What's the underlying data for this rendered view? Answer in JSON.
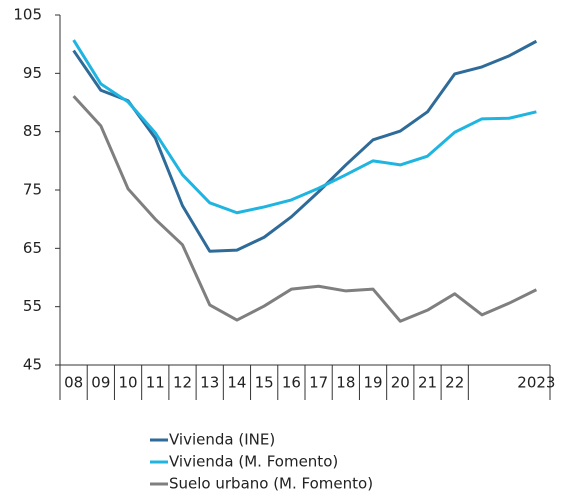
{
  "chart_data": {
    "type": "line",
    "categories": [
      "08",
      "09",
      "10",
      "11",
      "12",
      "13",
      "14",
      "15",
      "16",
      "17",
      "18",
      "19",
      "20",
      "21",
      "22",
      null,
      null,
      "2023"
    ],
    "series": [
      {
        "name": "Vivienda (INE)",
        "color": "#2e6b99",
        "values": [
          98.9,
          92.1,
          90.3,
          83.9,
          72.3,
          64.5,
          64.7,
          66.9,
          70.4,
          74.7,
          79.3,
          83.6,
          85.1,
          88.4,
          94.9,
          96.1,
          98.0,
          100.5
        ]
      },
      {
        "name": "Vivienda (M. Fomento)",
        "color": "#1fb5e0",
        "values": [
          100.7,
          93.2,
          90.1,
          84.8,
          77.6,
          72.8,
          71.1,
          72.1,
          73.3,
          75.3,
          77.6,
          80.0,
          79.3,
          80.8,
          84.9,
          87.2,
          87.3,
          88.4
        ]
      },
      {
        "name": "Suelo urbano (M. Fomento)",
        "color": "#7f7f7f",
        "values": [
          91.1,
          86.0,
          75.2,
          70.0,
          65.6,
          55.3,
          52.7,
          55.1,
          58.0,
          58.5,
          57.7,
          58.0,
          52.5,
          54.4,
          57.2,
          53.6,
          55.6,
          57.9
        ]
      }
    ],
    "ylim": [
      45,
      105
    ],
    "yticks": [
      45,
      55,
      65,
      75,
      85,
      95,
      105
    ],
    "grid": false,
    "legend": "bottom"
  }
}
